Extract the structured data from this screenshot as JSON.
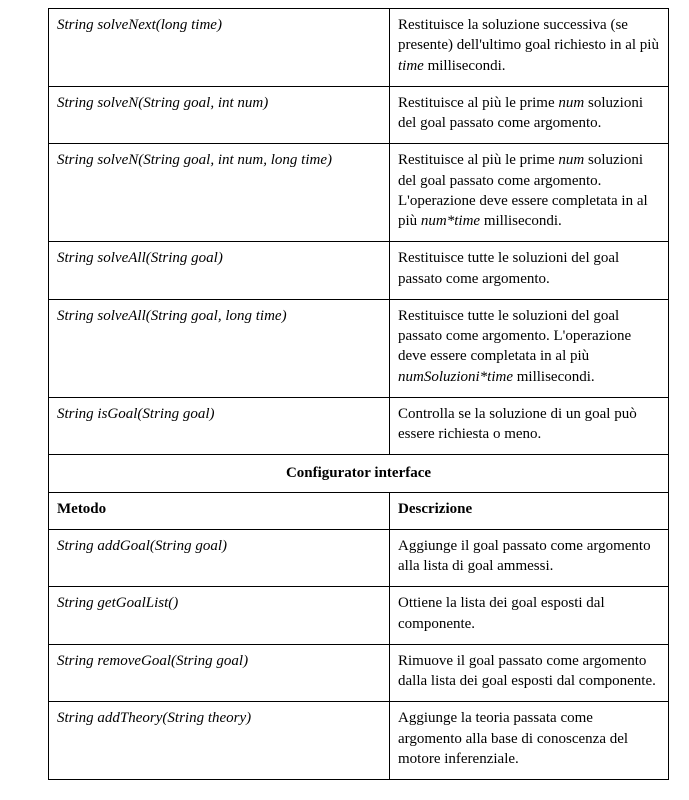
{
  "colors": {
    "border": "#000000",
    "background": "#ffffff",
    "text": "#000000"
  },
  "typography": {
    "font_family": "Times New Roman",
    "base_fontsize_pt": 11,
    "header_bold": true,
    "method_italic": true
  },
  "layout": {
    "col_widths_pct": [
      55,
      45
    ]
  },
  "top_rows": [
    {
      "method": "String solveNext(long time)",
      "desc": "Restituisce la soluzione successiva (se presente) dell'ultimo goal richiesto in al più <i>time</i> millisecondi."
    },
    {
      "method": "String solveN(String goal, int num)",
      "desc": "Restituisce al più le prime <i>num</i> soluzioni del goal passato come argomento."
    },
    {
      "method": "String solveN(String goal, int num, long time)",
      "desc": "Restituisce al più le prime <i>num</i> soluzioni del goal passato come argomento. L'operazione deve essere completata in al più <i>num*time</i> millisecondi."
    },
    {
      "method": "String solveAll(String goal)",
      "desc": "Restituisce tutte le soluzioni del goal passato come argomento."
    },
    {
      "method": "String solveAll(String goal, long time)",
      "desc": "Restituisce tutte le soluzioni del goal passato come argomento. L'operazione deve essere completata in al più <i>numSoluzioni*time</i> millisecondi."
    },
    {
      "method": "String isGoal(String goal)",
      "desc": "Controlla se la soluzione di un goal può essere richiesta o meno."
    }
  ],
  "section_header": "Configurator interface",
  "column_headers": {
    "method": "Metodo",
    "desc": "Descrizione"
  },
  "bottom_rows": [
    {
      "method": "String addGoal(String goal)",
      "desc": "Aggiunge il goal passato come argomento alla lista di goal ammessi."
    },
    {
      "method": "String getGoalList()",
      "desc": "Ottiene la lista dei goal esposti dal componente."
    },
    {
      "method": "String removeGoal(String goal)",
      "desc": "Rimuove il goal passato come argomento dalla lista dei goal esposti dal componente."
    },
    {
      "method": "String addTheory(String theory)",
      "desc": "Aggiunge la teoria passata come argomento alla base di conoscenza del motore inferenziale."
    }
  ]
}
